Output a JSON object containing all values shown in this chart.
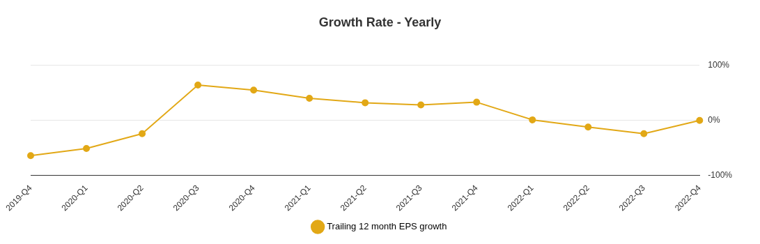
{
  "chart_data": {
    "type": "line",
    "title": "Growth Rate - Yearly",
    "categories": [
      "2019-Q4",
      "2020-Q1",
      "2020-Q2",
      "2020-Q3",
      "2020-Q4",
      "2021-Q1",
      "2021-Q2",
      "2021-Q3",
      "2021-Q4",
      "2022-Q1",
      "2022-Q2",
      "2022-Q3",
      "2022-Q4"
    ],
    "series": [
      {
        "name": "Trailing 12 month EPS growth",
        "color": "#e2a816",
        "values": [
          -64,
          -51,
          -24,
          64,
          55,
          40,
          32,
          28,
          33,
          1,
          -12,
          -24,
          0
        ]
      }
    ],
    "ylim": [
      -100,
      100
    ],
    "yticks": [
      {
        "value": -100,
        "label": "-100%"
      },
      {
        "value": 0,
        "label": "0%"
      },
      {
        "value": 100,
        "label": "100%"
      }
    ],
    "grid": "y",
    "legend": "bottom",
    "marker": "circle",
    "line_style": "solid"
  }
}
